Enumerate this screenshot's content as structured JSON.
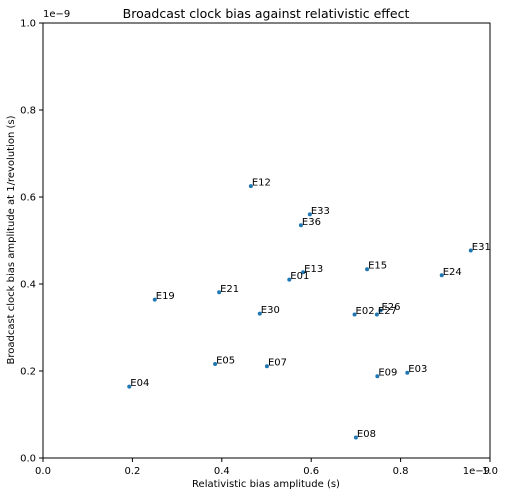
{
  "chart_data": {
    "type": "scatter",
    "title": "Broadcast clock bias against relativistic effect",
    "xlabel": "Relativistic bias amplitude (s)",
    "ylabel": "Broadcast clock bias amplitude at 1/revolution (s)",
    "x_offset_label": "1e−9",
    "y_offset_label": "1e−9",
    "xlim": [
      0,
      1.0
    ],
    "ylim": [
      0,
      1.0
    ],
    "xticks": [
      "0.0",
      "0.2",
      "0.4",
      "0.6",
      "0.8",
      "1.0"
    ],
    "yticks": [
      "0.0",
      "0.2",
      "0.4",
      "0.6",
      "0.8",
      "1.0"
    ],
    "grid": false,
    "marker_color": "#1f77b4",
    "points": [
      {
        "label": "E12",
        "x": 0.465,
        "y": 0.625
      },
      {
        "label": "E33",
        "x": 0.597,
        "y": 0.56
      },
      {
        "label": "E36",
        "x": 0.577,
        "y": 0.535
      },
      {
        "label": "E31",
        "x": 0.957,
        "y": 0.477
      },
      {
        "label": "E15",
        "x": 0.725,
        "y": 0.434
      },
      {
        "label": "E24",
        "x": 0.892,
        "y": 0.42
      },
      {
        "label": "E13",
        "x": 0.582,
        "y": 0.427
      },
      {
        "label": "E01",
        "x": 0.551,
        "y": 0.41
      },
      {
        "label": "E21",
        "x": 0.394,
        "y": 0.381
      },
      {
        "label": "E19",
        "x": 0.25,
        "y": 0.364
      },
      {
        "label": "E26",
        "x": 0.755,
        "y": 0.339
      },
      {
        "label": "E30",
        "x": 0.485,
        "y": 0.332
      },
      {
        "label": "E02",
        "x": 0.697,
        "y": 0.33
      },
      {
        "label": "E27",
        "x": 0.747,
        "y": 0.33
      },
      {
        "label": "E05",
        "x": 0.385,
        "y": 0.216
      },
      {
        "label": "E07",
        "x": 0.501,
        "y": 0.211
      },
      {
        "label": "E03",
        "x": 0.815,
        "y": 0.196
      },
      {
        "label": "E09",
        "x": 0.748,
        "y": 0.188
      },
      {
        "label": "E04",
        "x": 0.193,
        "y": 0.164
      },
      {
        "label": "E08",
        "x": 0.7,
        "y": 0.047
      }
    ]
  }
}
